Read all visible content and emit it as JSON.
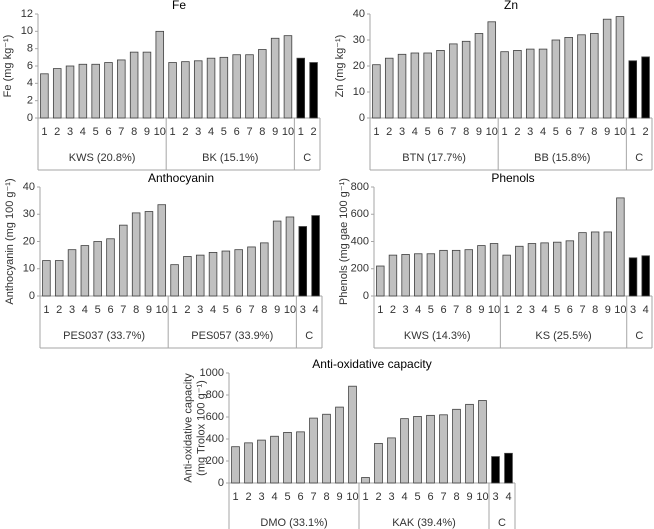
{
  "chart_data": [
    {
      "type": "bar",
      "title": "Fe",
      "ylabel": [
        "Fe (mg kg⁻¹)"
      ],
      "ylim": [
        0,
        12
      ],
      "yticks": [
        0,
        2,
        4,
        6,
        8,
        10,
        12
      ],
      "groups": [
        {
          "label": "KWS (20.8%)",
          "color": "#c0c0c0",
          "categories": [
            "1",
            "2",
            "3",
            "4",
            "5",
            "6",
            "7",
            "8",
            "9",
            "10"
          ],
          "values": [
            5.1,
            5.7,
            6.0,
            6.2,
            6.2,
            6.4,
            6.7,
            7.6,
            7.6,
            10.0
          ]
        },
        {
          "label": "BK (15.1%)",
          "color": "#c0c0c0",
          "categories": [
            "1",
            "2",
            "3",
            "4",
            "5",
            "6",
            "7",
            "8",
            "9",
            "10"
          ],
          "values": [
            6.4,
            6.5,
            6.6,
            6.9,
            7.0,
            7.3,
            7.3,
            7.9,
            9.2,
            9.5
          ]
        },
        {
          "label": "C",
          "color": "#000000",
          "categories": [
            "1",
            "2"
          ],
          "values": [
            6.9,
            6.4
          ]
        }
      ]
    },
    {
      "type": "bar",
      "title": "Zn",
      "ylabel": [
        "Zn (mg kg⁻¹)"
      ],
      "ylim": [
        0,
        40
      ],
      "yticks": [
        0,
        10,
        20,
        30,
        40
      ],
      "groups": [
        {
          "label": "BTN (17.7%)",
          "color": "#c0c0c0",
          "categories": [
            "1",
            "2",
            "3",
            "4",
            "5",
            "6",
            "7",
            "8",
            "9",
            "10"
          ],
          "values": [
            20.5,
            23,
            24.5,
            25,
            25,
            26,
            28.5,
            29.5,
            32.5,
            37
          ]
        },
        {
          "label": "BB (15.8%)",
          "color": "#c0c0c0",
          "categories": [
            "1",
            "2",
            "3",
            "4",
            "5",
            "6",
            "7",
            "8",
            "9",
            "10"
          ],
          "values": [
            25.5,
            26,
            26.5,
            26.5,
            30,
            31,
            32,
            32.5,
            38,
            39
          ]
        },
        {
          "label": "C",
          "color": "#000000",
          "categories": [
            "1",
            "2"
          ],
          "values": [
            22,
            23.5
          ]
        }
      ]
    },
    {
      "type": "bar",
      "title": "Anthocyanin",
      "ylabel": [
        "Anthocyanin (mg 100 g⁻¹)"
      ],
      "ylim": [
        0,
        40
      ],
      "yticks": [
        0,
        10,
        20,
        30,
        40
      ],
      "groups": [
        {
          "label": "PES037 (33.7%)",
          "color": "#c0c0c0",
          "categories": [
            "1",
            "2",
            "3",
            "4",
            "5",
            "6",
            "7",
            "8",
            "9",
            "10"
          ],
          "values": [
            13,
            13,
            17,
            18.5,
            20,
            21,
            26,
            30.5,
            31,
            33.5
          ]
        },
        {
          "label": "PES057 (33.9%)",
          "color": "#c0c0c0",
          "categories": [
            "1",
            "2",
            "3",
            "4",
            "5",
            "6",
            "7",
            "8",
            "9",
            "10"
          ],
          "values": [
            11.5,
            14.5,
            15,
            16,
            16.5,
            17,
            18,
            19.5,
            27.5,
            29
          ]
        },
        {
          "label": "C",
          "color": "#000000",
          "categories": [
            "3",
            "4"
          ],
          "values": [
            25.5,
            29.5
          ]
        }
      ]
    },
    {
      "type": "bar",
      "title": "Phenols",
      "ylabel": [
        "Phenols (mg gae 100 g⁻¹)"
      ],
      "ylim": [
        0,
        800
      ],
      "yticks": [
        0,
        200,
        400,
        600,
        800
      ],
      "groups": [
        {
          "label": "KWS (14.3%)",
          "color": "#c0c0c0",
          "categories": [
            "1",
            "2",
            "3",
            "4",
            "5",
            "6",
            "7",
            "8",
            "9",
            "10"
          ],
          "values": [
            220,
            300,
            305,
            310,
            310,
            335,
            335,
            340,
            370,
            385
          ]
        },
        {
          "label": "KS (25.5%)",
          "color": "#c0c0c0",
          "categories": [
            "1",
            "2",
            "3",
            "4",
            "5",
            "6",
            "7",
            "8",
            "9",
            "10"
          ],
          "values": [
            300,
            365,
            385,
            390,
            395,
            405,
            465,
            470,
            470,
            720
          ]
        },
        {
          "label": "C",
          "color": "#000000",
          "categories": [
            "3",
            "4"
          ],
          "values": [
            280,
            295
          ]
        }
      ]
    },
    {
      "type": "bar",
      "title": "Anti-oxidative capacity",
      "ylabel": [
        "Anti-oxidative capacity",
        "(mg Trolox 100 g⁻¹)"
      ],
      "ylim": [
        0,
        1000
      ],
      "yticks": [
        0,
        200,
        400,
        600,
        800,
        1000
      ],
      "groups": [
        {
          "label": "DMO (33.1%)",
          "color": "#c0c0c0",
          "categories": [
            "1",
            "2",
            "3",
            "4",
            "5",
            "6",
            "7",
            "8",
            "9",
            "10"
          ],
          "values": [
            330,
            365,
            390,
            425,
            460,
            465,
            590,
            625,
            690,
            880
          ]
        },
        {
          "label": "KAK (39.4%)",
          "color": "#c0c0c0",
          "categories": [
            "1",
            "2",
            "3",
            "4",
            "5",
            "6",
            "7",
            "8",
            "9",
            "10"
          ],
          "values": [
            50,
            360,
            410,
            585,
            605,
            615,
            620,
            670,
            715,
            750
          ]
        },
        {
          "label": "C",
          "color": "#000000",
          "categories": [
            "3",
            "4"
          ],
          "values": [
            240,
            270
          ]
        }
      ]
    }
  ]
}
